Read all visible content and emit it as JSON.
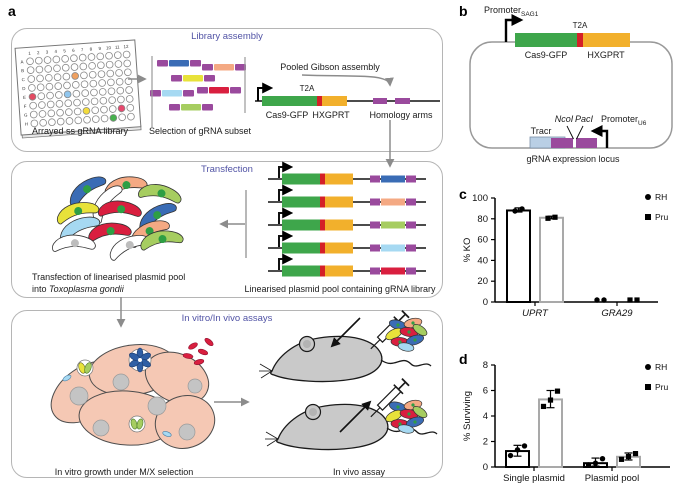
{
  "panel_labels": {
    "a": "a",
    "b": "b",
    "c": "c",
    "d": "d"
  },
  "colors": {
    "cas9_green": "#3ea64b",
    "t2a_red": "#d42027",
    "hxgprt_yellow": "#f2b02c",
    "grna_purple": "#9a4a9d",
    "tracr_blue": "#b9cfe5",
    "panel_title": "#5153a5",
    "arrow_gray": "#8c8c8c",
    "box_border": "#b5b5b5",
    "rh_bar_outline": "#000000",
    "pru_bar_outline": "#a9a9a9"
  },
  "library_assembly": {
    "title": "Library assembly",
    "plate": {
      "caption": "Arrayed ss gRNA library",
      "columns": [
        "1",
        "2",
        "3",
        "4",
        "5",
        "6",
        "7",
        "8",
        "9",
        "10",
        "11",
        "12"
      ],
      "rows": [
        "A",
        "B",
        "C",
        "D",
        "E",
        "F",
        "G",
        "H"
      ],
      "colored_wells": [
        {
          "row": "C",
          "col": 6,
          "color": "#f0a160"
        },
        {
          "row": "E",
          "col": 1,
          "color": "#e34b62"
        },
        {
          "row": "E",
          "col": 5,
          "color": "#90c6ee"
        },
        {
          "row": "G",
          "col": 7,
          "color": "#f3dc3c"
        },
        {
          "row": "G",
          "col": 11,
          "color": "#e8486e"
        },
        {
          "row": "H",
          "col": 10,
          "color": "#46b14d"
        }
      ]
    },
    "selection": {
      "caption": "Selection of gRNA subset",
      "fragment_colors": [
        "#3a6cb5",
        "#f4a983",
        "#e8e23a",
        "#a6d9f2",
        "#d91f3f",
        "#a6cd60"
      ]
    },
    "gibson_label": "Pooled Gibson assembly",
    "construct": {
      "t2a": "T2A",
      "cas9": "Cas9-GFP",
      "hxgprt": "HXGPRT",
      "homology": "Homology arms"
    }
  },
  "transfection": {
    "title": "Transfection",
    "caption_line1": "Transfection of linearised plasmid pool",
    "caption_into": "into ",
    "caption_species": "Toxoplasma gondii",
    "pool_caption": "Linearised plasmid pool containing gRNA library",
    "cassette_colors": [
      "#3a6cb5",
      "#f4a983",
      "#a6cd60",
      "#a6d9f2",
      "#d91f3f"
    ]
  },
  "assays": {
    "title": "In vitro/In vivo assays",
    "invitro_caption": "In vitro growth under M/X selection",
    "invivo_caption": "In vivo assay"
  },
  "plasmid_map": {
    "promoter_top": "Promoter",
    "promoter_top_sub": "SAG1",
    "t2a": "T2A",
    "cas9": "Cas9-GFP",
    "hxgprt": "HXGPRT",
    "tracr": "Tracr",
    "ncoi": "NcoI",
    "paci": "PacI",
    "promoter_bottom": "Promoter",
    "promoter_bottom_sub": "U6",
    "locus_caption": "gRNA expression locus"
  },
  "chart_data": [
    {
      "id": "c",
      "type": "bar",
      "ylabel": "% KO",
      "ylim": [
        0,
        100
      ],
      "yticks": [
        0,
        20,
        40,
        60,
        80,
        100
      ],
      "categories": [
        "UPRT",
        "GRA29"
      ],
      "italic_categories": true,
      "legend_position": "right",
      "series": [
        {
          "name": "RH",
          "marker": "circle",
          "color": "#000000",
          "values": [
            88,
            0
          ],
          "errors": [
            [
              86.5,
              90.5
            ],
            null
          ],
          "points": [
            [
              87.5,
              89.5
            ],
            [
              0,
              0
            ]
          ]
        },
        {
          "name": "Pru",
          "marker": "square",
          "color": "#a9a9a9",
          "values": [
            81,
            0
          ],
          "errors": [
            [
              80,
              82.5
            ],
            null
          ],
          "points": [
            [
              80.5,
              81.5
            ],
            [
              0,
              0
            ]
          ]
        }
      ]
    },
    {
      "id": "d",
      "type": "bar",
      "ylabel": "% Surviving",
      "ylim": [
        0,
        8
      ],
      "yticks": [
        0,
        2,
        4,
        6,
        8
      ],
      "categories": [
        "Single plasmid",
        "Plasmid pool"
      ],
      "italic_categories": false,
      "legend_position": "right",
      "series": [
        {
          "name": "RH",
          "marker": "circle",
          "color": "#000000",
          "values": [
            1.25,
            0.3
          ],
          "errors": [
            [
              0.85,
              1.7
            ],
            [
              0.07,
              0.7
            ]
          ],
          "points": [
            [
              0.9,
              1.35,
              1.65
            ],
            [
              0.12,
              0.3,
              0.65
            ]
          ]
        },
        {
          "name": "Pru",
          "marker": "square",
          "color": "#a9a9a9",
          "values": [
            5.3,
            0.8
          ],
          "errors": [
            [
              4.65,
              6.0
            ],
            [
              0.55,
              1.1
            ]
          ],
          "points": [
            [
              4.75,
              5.25,
              5.95
            ],
            [
              0.6,
              0.82,
              1.05
            ]
          ]
        }
      ]
    }
  ]
}
